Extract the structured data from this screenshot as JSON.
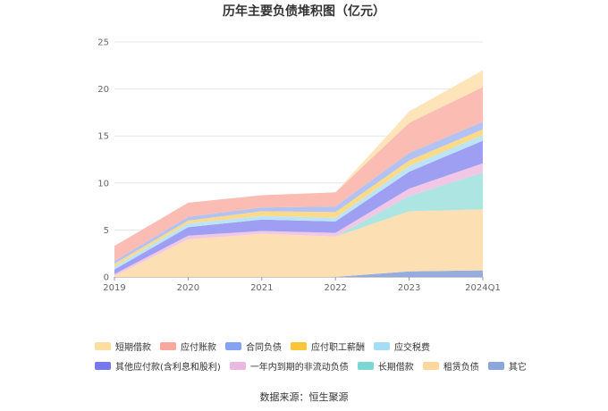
{
  "source": "数据来源：恒生聚源",
  "chart_data": {
    "type": "area",
    "stacked": true,
    "title": "历年主要负债堆积图（亿元）",
    "xlabel": "",
    "ylabel": "",
    "categories": [
      "2019",
      "2020",
      "2021",
      "2022",
      "2023",
      "2024Q1"
    ],
    "ylim": [
      0,
      25
    ],
    "yticks": [
      0,
      5,
      10,
      15,
      20,
      25
    ],
    "grid": true,
    "legend_position": "bottom",
    "series": [
      {
        "name": "其它",
        "color": "#8FA8DC",
        "values": [
          0.0,
          0.0,
          0.0,
          0.0,
          0.6,
          0.7
        ]
      },
      {
        "name": "租赁负债",
        "color": "#FDDDB0",
        "values": [
          0.1,
          4.0,
          4.6,
          4.3,
          6.4,
          6.5
        ]
      },
      {
        "name": "长期借款",
        "color": "#A8E4E0",
        "values": [
          0.0,
          0.0,
          0.0,
          0.0,
          1.6,
          3.9
        ]
      },
      {
        "name": "一年内到期的非流动负债",
        "color": "#F0C4E4",
        "values": [
          0.2,
          0.4,
          0.3,
          0.4,
          0.8,
          1.0
        ]
      },
      {
        "name": "其他应付款(含利息和股利)",
        "color": "#9999F2",
        "values": [
          0.5,
          0.9,
          1.2,
          1.2,
          1.8,
          2.4
        ]
      },
      {
        "name": "应交税费",
        "color": "#B8E2F5",
        "values": [
          0.3,
          0.4,
          0.4,
          0.4,
          0.6,
          0.6
        ]
      },
      {
        "name": "应付职工薪酬",
        "color": "#FDD882",
        "values": [
          0.3,
          0.3,
          0.5,
          0.6,
          0.6,
          0.6
        ]
      },
      {
        "name": "合同负债",
        "color": "#AEC0F2",
        "values": [
          0.3,
          0.4,
          0.4,
          0.6,
          0.8,
          0.8
        ]
      },
      {
        "name": "应付账款",
        "color": "#FBB8B0",
        "values": [
          1.6,
          1.5,
          1.3,
          1.5,
          3.2,
          3.7
        ]
      },
      {
        "name": "短期借款",
        "color": "#FDE3B5",
        "values": [
          0.0,
          0.0,
          0.0,
          0.0,
          1.2,
          1.8
        ]
      }
    ],
    "legend_order": [
      "短期借款",
      "应付账款",
      "合同负债",
      "应付职工薪酬",
      "应交税费",
      "其他应付款(含利息和股利)",
      "一年内到期的非流动负债",
      "长期借款",
      "租赁负债",
      "其它"
    ],
    "legend_colors": {
      "短期借款": "#FDDDA0",
      "应付账款": "#F8A89C",
      "合同负债": "#85A3F2",
      "应付职工薪酬": "#FCC437",
      "应交税费": "#A6DDF6",
      "其他应付款(含利息和股利)": "#7778EE",
      "一年内到期的非流动负债": "#EAB9E0",
      "长期借款": "#7CD7D3",
      "租赁负债": "#FDD79E",
      "其它": "#8BA6DC"
    }
  }
}
